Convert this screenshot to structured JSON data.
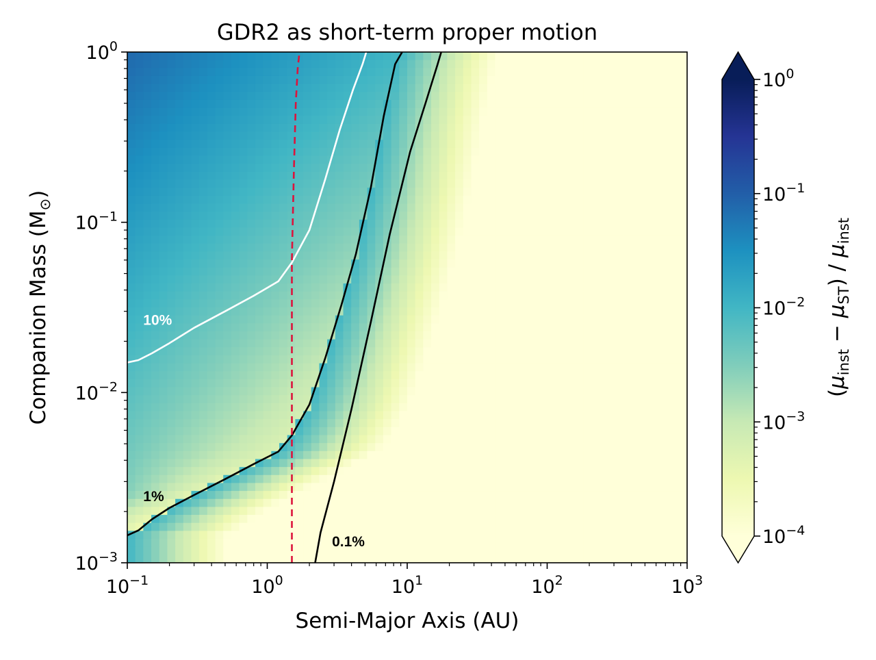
{
  "chart_data": {
    "type": "heatmap",
    "title": "GDR2 as short-term proper motion",
    "xlabel": "Semi-Major Axis (AU)",
    "ylabel": "Companion Mass (M",
    "ylabel_symbol": "⊙",
    "ylabel_close": ")",
    "xscale": "log",
    "yscale": "log",
    "xlim": [
      0.1,
      1000
    ],
    "ylim": [
      0.001,
      1
    ],
    "x_ticks": [
      {
        "value": 0.1,
        "base": "10",
        "exp": "−1"
      },
      {
        "value": 1,
        "base": "10",
        "exp": "0"
      },
      {
        "value": 10,
        "base": "10",
        "exp": "1"
      },
      {
        "value": 100,
        "base": "10",
        "exp": "2"
      },
      {
        "value": 1000,
        "base": "10",
        "exp": "3"
      }
    ],
    "y_ticks": [
      {
        "value": 0.001,
        "base": "10",
        "exp": "−3"
      },
      {
        "value": 0.01,
        "base": "10",
        "exp": "−2"
      },
      {
        "value": 0.1,
        "base": "10",
        "exp": "−1"
      },
      {
        "value": 1,
        "base": "10",
        "exp": "0"
      }
    ],
    "colorbar": {
      "label": "(μinst − μST) / μinst",
      "label_parts": {
        "mu": "μ",
        "inst": "inst",
        "st": "ST",
        "minus": " − ",
        "open": "(",
        "close": ")",
        "slash": " / "
      },
      "scale": "log",
      "range": [
        0.0001,
        1
      ],
      "extend": "both",
      "colormap": "YlGnBu",
      "ticks": [
        {
          "value": 0.0001,
          "base": "10",
          "exp": "−4"
        },
        {
          "value": 0.001,
          "base": "10",
          "exp": "−3"
        },
        {
          "value": 0.01,
          "base": "10",
          "exp": "−2"
        },
        {
          "value": 0.1,
          "base": "10",
          "exp": "−1"
        },
        {
          "value": 1,
          "base": "10",
          "exp": "0"
        }
      ]
    },
    "contours": [
      {
        "level": 0.1,
        "label": "10%",
        "color": "#ffffff",
        "label_at": [
          0.13,
          0.025
        ],
        "points": [
          [
            0.1,
            0.015
          ],
          [
            0.12,
            0.0155
          ],
          [
            0.15,
            0.017
          ],
          [
            0.2,
            0.0195
          ],
          [
            0.3,
            0.024
          ],
          [
            0.5,
            0.03
          ],
          [
            0.8,
            0.037
          ],
          [
            1.2,
            0.045
          ],
          [
            1.5,
            0.058
          ],
          [
            2,
            0.09
          ],
          [
            2.6,
            0.18
          ],
          [
            3.3,
            0.35
          ],
          [
            4.1,
            0.6
          ],
          [
            4.8,
            0.85
          ],
          [
            5.1,
            1.0
          ]
        ]
      },
      {
        "level": 0.01,
        "label": "1%",
        "color": "#000000",
        "label_at": [
          0.13,
          0.0023
        ],
        "points": [
          [
            0.1,
            0.00145
          ],
          [
            0.12,
            0.00155
          ],
          [
            0.15,
            0.0018
          ],
          [
            0.2,
            0.0021
          ],
          [
            0.3,
            0.0025
          ],
          [
            0.5,
            0.0031
          ],
          [
            0.8,
            0.0038
          ],
          [
            1.2,
            0.0045
          ],
          [
            1.5,
            0.0056
          ],
          [
            2,
            0.0085
          ],
          [
            2.6,
            0.016
          ],
          [
            3.4,
            0.033
          ],
          [
            4.3,
            0.065
          ],
          [
            5.5,
            0.16
          ],
          [
            6.8,
            0.42
          ],
          [
            8.2,
            0.85
          ],
          [
            9.2,
            1.0
          ]
        ]
      },
      {
        "level": 0.001,
        "label": "0.1%",
        "color": "#000000",
        "label_at": [
          2.9,
          0.00125
        ],
        "points": [
          [
            2.2,
            0.001
          ],
          [
            2.4,
            0.0015
          ],
          [
            3,
            0.003
          ],
          [
            4,
            0.008
          ],
          [
            5.5,
            0.026
          ],
          [
            7.5,
            0.085
          ],
          [
            10.5,
            0.26
          ],
          [
            13.5,
            0.5
          ],
          [
            16.5,
            0.85
          ],
          [
            17.5,
            1.0
          ]
        ]
      }
    ],
    "reference_line": {
      "x": 1.5,
      "color": "#dc143c",
      "style": "dashed",
      "points": [
        [
          1.5,
          0.001
        ],
        [
          1.5,
          0.01
        ],
        [
          1.5,
          0.06
        ],
        [
          1.55,
          0.2
        ],
        [
          1.6,
          0.5
        ],
        [
          1.65,
          0.8
        ],
        [
          1.7,
          1.0
        ]
      ]
    }
  }
}
